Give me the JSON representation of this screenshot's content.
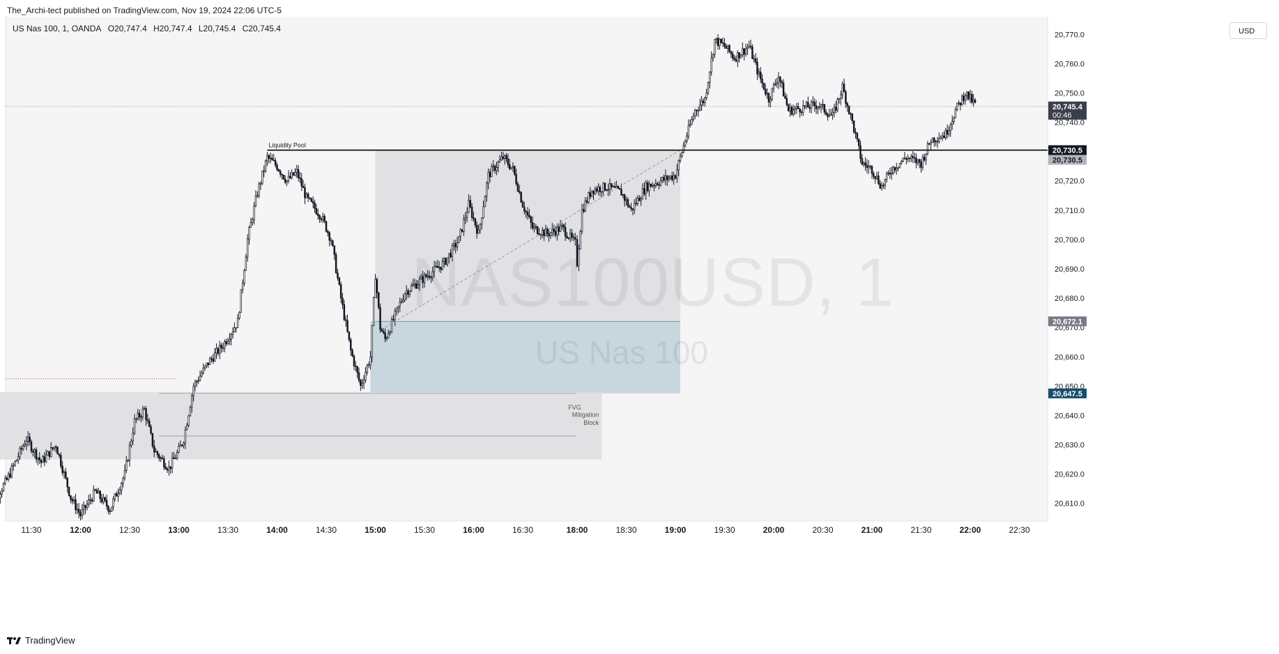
{
  "header": {
    "published_text": "The_Archi-tect published on TradingView.com, Nov 19, 2024 22:06 UTC-5"
  },
  "legend": {
    "symbol": "US Nas 100, 1, OANDA",
    "open": "O20,747.4",
    "high": "H20,747.4",
    "low": "L20,745.4",
    "close": "C20,745.4"
  },
  "currency": "USD",
  "watermark": {
    "symbol": "NAS100USD, 1",
    "name": "US Nas 100"
  },
  "footer": {
    "logo_icon": "tradingview-logo-icon",
    "brand": "TradingView"
  },
  "colors": {
    "candle": "#131722",
    "background": "#f5f5f5",
    "zone_gray": "#dddde0",
    "zone_blue": "#c5d5dc",
    "last_price_label": "#3a3f4a",
    "level_label_dark": "#131722",
    "level_label_gray": "#b2b5be",
    "level_label_mid": "#787b86",
    "level_label_teal": "#164f6b",
    "dotted_red": "#e53935"
  },
  "chart_data": {
    "type": "candlestick",
    "y_range": [
      20604,
      20776
    ],
    "y_ticks": [
      "20,610.0",
      "20,620.0",
      "20,630.0",
      "20,640.0",
      "20,650.0",
      "20,660.0",
      "20,670.0",
      "20,680.0",
      "20,690.0",
      "20,700.0",
      "20,710.0",
      "20,720.0",
      "20,730.0",
      "20,740.0",
      "20,750.0",
      "20,760.0",
      "20,770.0"
    ],
    "x_ticks": [
      "11:30",
      "12:00",
      "12:30",
      "13:00",
      "13:30",
      "14:00",
      "14:30",
      "15:00",
      "15:30",
      "16:00",
      "16:30",
      "18:00",
      "18:30",
      "19:00",
      "19:30",
      "20:00",
      "20:30",
      "21:00",
      "21:30",
      "22:00",
      "22:30"
    ],
    "price_path": [
      [
        11.05,
        20607
      ],
      [
        11.25,
        20618
      ],
      [
        11.45,
        20632
      ],
      [
        11.6,
        20624
      ],
      [
        11.75,
        20630
      ],
      [
        11.9,
        20612
      ],
      [
        12.0,
        20606
      ],
      [
        12.15,
        20614
      ],
      [
        12.3,
        20608
      ],
      [
        12.45,
        20620
      ],
      [
        12.55,
        20638
      ],
      [
        12.65,
        20642
      ],
      [
        12.75,
        20628
      ],
      [
        12.9,
        20622
      ],
      [
        13.0,
        20628
      ],
      [
        13.05,
        20632
      ],
      [
        13.15,
        20650
      ],
      [
        13.3,
        20658
      ],
      [
        13.45,
        20664
      ],
      [
        13.6,
        20672
      ],
      [
        13.7,
        20700
      ],
      [
        13.8,
        20716
      ],
      [
        13.9,
        20728
      ],
      [
        14.0,
        20725
      ],
      [
        14.1,
        20720
      ],
      [
        14.2,
        20723
      ],
      [
        14.3,
        20714
      ],
      [
        14.45,
        20708
      ],
      [
        14.55,
        20700
      ],
      [
        14.65,
        20680
      ],
      [
        14.75,
        20662
      ],
      [
        14.85,
        20650
      ],
      [
        14.95,
        20660
      ],
      [
        15.0,
        20688
      ],
      [
        15.05,
        20670
      ],
      [
        15.1,
        20666
      ],
      [
        15.3,
        20682
      ],
      [
        15.5,
        20687
      ],
      [
        15.7,
        20692
      ],
      [
        15.85,
        20700
      ],
      [
        15.95,
        20712
      ],
      [
        16.05,
        20702
      ],
      [
        16.15,
        20722
      ],
      [
        16.3,
        20728
      ],
      [
        16.4,
        20724
      ],
      [
        16.5,
        20712
      ],
      [
        16.6,
        20704
      ],
      [
        16.75,
        20702
      ],
      [
        16.9,
        20704
      ],
      [
        17.0,
        20700
      ],
      [
        17.1,
        20696
      ],
      [
        18.0,
        20692
      ],
      [
        18.05,
        20710
      ],
      [
        18.15,
        20717
      ],
      [
        18.3,
        20718
      ],
      [
        18.45,
        20716
      ],
      [
        18.55,
        20710
      ],
      [
        18.7,
        20718
      ],
      [
        18.85,
        20720
      ],
      [
        19.0,
        20722
      ],
      [
        19.1,
        20734
      ],
      [
        19.2,
        20744
      ],
      [
        19.3,
        20748
      ],
      [
        19.4,
        20768
      ],
      [
        19.5,
        20766
      ],
      [
        19.6,
        20762
      ],
      [
        19.75,
        20766
      ],
      [
        19.85,
        20756
      ],
      [
        19.95,
        20748
      ],
      [
        20.05,
        20756
      ],
      [
        20.15,
        20744
      ],
      [
        20.3,
        20745
      ],
      [
        20.45,
        20746
      ],
      [
        20.6,
        20742
      ],
      [
        20.7,
        20752
      ],
      [
        20.8,
        20740
      ],
      [
        20.9,
        20726
      ],
      [
        21.0,
        20724
      ],
      [
        21.1,
        20718
      ],
      [
        21.2,
        20724
      ],
      [
        21.35,
        20728
      ],
      [
        21.5,
        20726
      ],
      [
        21.6,
        20734
      ],
      [
        21.75,
        20736
      ],
      [
        21.85,
        20744
      ],
      [
        21.95,
        20750
      ],
      [
        22.05,
        20746
      ]
    ],
    "levels": [
      {
        "label": "Liquidity Pool",
        "price": 20730.5,
        "price_text": "20,730.5",
        "style": "solid-dark"
      },
      {
        "price": 20745.4,
        "price_text": "20,745.4",
        "countdown": "00:46",
        "style": "dotted-last"
      },
      {
        "price": 20730.5,
        "price_text": "20,730.5",
        "style": "gray-label"
      },
      {
        "price": 20672.1,
        "price_text": "20,672.1",
        "style": "mid-label"
      },
      {
        "price": 20647.5,
        "price_text": "20,647.5",
        "style": "teal-label"
      }
    ],
    "zones": [
      {
        "name": "premium-zone",
        "from_time": 15.0,
        "to_time": 19.05,
        "top": 20730.5,
        "bottom": 20672.1,
        "color": "gray"
      },
      {
        "name": "discount-zone",
        "from_time": 14.95,
        "to_time": 19.05,
        "top": 20672.1,
        "bottom": 20647.5,
        "color": "blue"
      },
      {
        "name": "fvg-mitigation-block",
        "from_time": 11.0,
        "to_time": 18.25,
        "top": 20648,
        "bottom": 20625,
        "color": "gray",
        "label_lines": [
          "FVG",
          "Mitigation",
          "Block"
        ]
      }
    ],
    "annotations": [
      "Liquidity Pool",
      "FVG",
      "Mitigation",
      "Block"
    ]
  }
}
